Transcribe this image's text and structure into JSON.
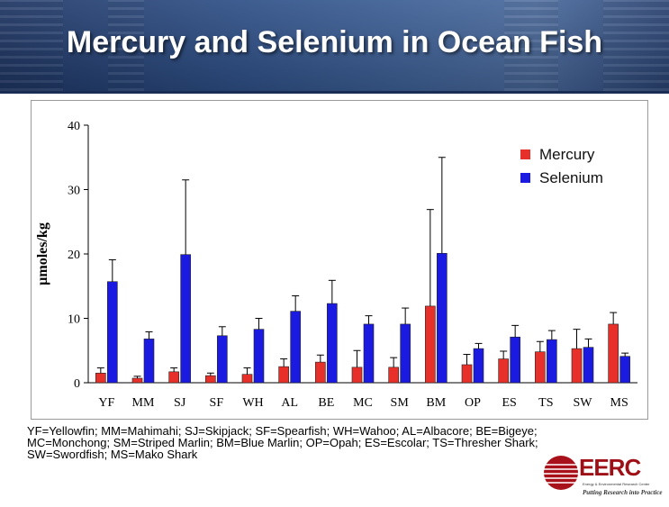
{
  "slide": {
    "title": "Mercury and Selenium in Ocean Fish",
    "footnote": "YF=Yellowfin; MM=Mahimahi; SJ=Skipjack; SF=Spearfish; WH=Wahoo; AL=Albacore; BE=Bigeye; MC=Monchong; SM=Striped Marlin; BM=Blue Marlin; OP=Opah;  ES=Escolar; TS=Thresher Shark; SW=Swordfish; MS=Mako Shark"
  },
  "logo": {
    "name": "EERC",
    "subtitle": "Energy & Environmental Research Center",
    "tagline": "Putting Research into Practice"
  },
  "chart_data": {
    "type": "bar",
    "title": "",
    "xlabel": "",
    "ylabel": "µmoles/kg",
    "ylim": [
      0,
      40
    ],
    "yticks": [
      0,
      10,
      20,
      30,
      40
    ],
    "grid": false,
    "legend_position": "top-right",
    "categories": [
      "YF",
      "MM",
      "SJ",
      "SF",
      "WH",
      "AL",
      "BE",
      "MC",
      "SM",
      "BM",
      "OP",
      "ES",
      "TS",
      "SW",
      "MS"
    ],
    "series": [
      {
        "name": "Mercury",
        "color": "#e8302a",
        "values": [
          1.5,
          0.7,
          1.7,
          1.1,
          1.3,
          2.5,
          3.2,
          2.4,
          2.4,
          11.9,
          2.8,
          3.7,
          4.8,
          5.3,
          9.1
        ],
        "error": [
          0.8,
          0.3,
          0.6,
          0.4,
          1.0,
          1.2,
          1.1,
          2.6,
          1.5,
          15.0,
          1.6,
          1.2,
          1.6,
          3.0,
          1.8
        ]
      },
      {
        "name": "Selenium",
        "color": "#1a1ae0",
        "values": [
          15.7,
          6.8,
          19.9,
          7.3,
          8.3,
          11.1,
          12.3,
          9.1,
          9.1,
          20.1,
          5.3,
          7.1,
          6.7,
          5.5,
          4.1
        ],
        "error": [
          3.4,
          1.1,
          11.6,
          1.4,
          1.7,
          2.4,
          3.6,
          1.3,
          2.5,
          14.9,
          0.8,
          1.8,
          1.4,
          1.3,
          0.5
        ]
      }
    ]
  }
}
